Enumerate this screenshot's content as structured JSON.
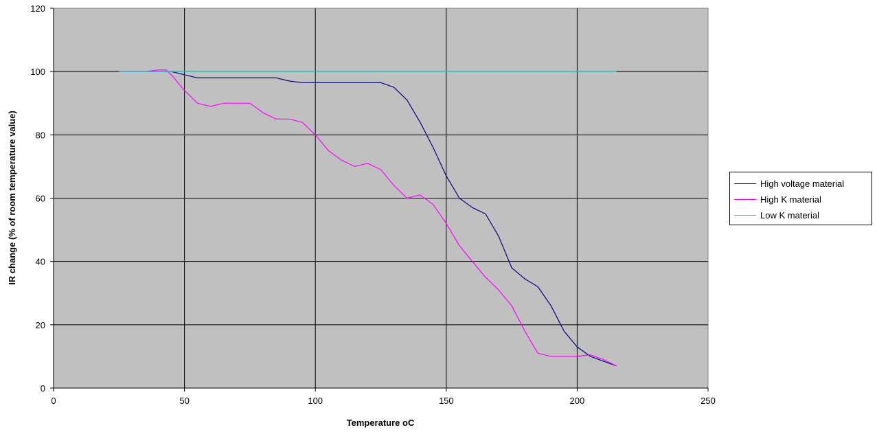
{
  "chart_data": {
    "type": "line",
    "xlabel": "Temperature oC",
    "ylabel": "IR change (% of room temperature value)",
    "xlim": [
      0,
      250
    ],
    "ylim": [
      0,
      120
    ],
    "xticks": [
      0,
      50,
      100,
      150,
      200,
      250
    ],
    "yticks": [
      0,
      20,
      40,
      60,
      80,
      100,
      120
    ],
    "grid": true,
    "plot_background": "#c0c0c0",
    "legend_position": "right",
    "series": [
      {
        "name": "High voltage material",
        "color": "#000080",
        "x": [
          25,
          35,
          40,
          45,
          50,
          55,
          60,
          70,
          80,
          85,
          90,
          95,
          100,
          110,
          120,
          125,
          130,
          135,
          140,
          145,
          150,
          155,
          160,
          165,
          170,
          175,
          180,
          185,
          190,
          195,
          200,
          205,
          210,
          215
        ],
        "y": [
          100,
          100,
          100,
          100,
          99,
          98,
          98,
          98,
          98,
          98,
          97,
          96.5,
          96.5,
          96.5,
          96.5,
          96.5,
          95,
          91,
          84,
          76,
          67,
          60,
          57,
          55,
          48,
          38,
          34.5,
          32,
          26,
          18,
          13,
          10,
          8.5,
          7
        ]
      },
      {
        "name": "High K material",
        "color": "#ff00ff",
        "x": [
          25,
          35,
          40,
          43,
          45,
          50,
          55,
          60,
          65,
          70,
          75,
          80,
          85,
          90,
          95,
          100,
          105,
          110,
          115,
          120,
          125,
          130,
          135,
          140,
          145,
          150,
          155,
          160,
          165,
          170,
          175,
          180,
          185,
          190,
          195,
          200,
          205,
          210,
          215
        ],
        "y": [
          100,
          100,
          100.5,
          100.5,
          99,
          94,
          90,
          89,
          90,
          90,
          90,
          87,
          85,
          85,
          84,
          80,
          75,
          72,
          70,
          71,
          69,
          64,
          60,
          61,
          58,
          52,
          45,
          40,
          35,
          31,
          26,
          18,
          11,
          10,
          10,
          10,
          10.5,
          9,
          7
        ]
      },
      {
        "name": "Low K material",
        "color": "#33cccc",
        "x": [
          25,
          215
        ],
        "y": [
          100,
          100
        ]
      }
    ]
  }
}
